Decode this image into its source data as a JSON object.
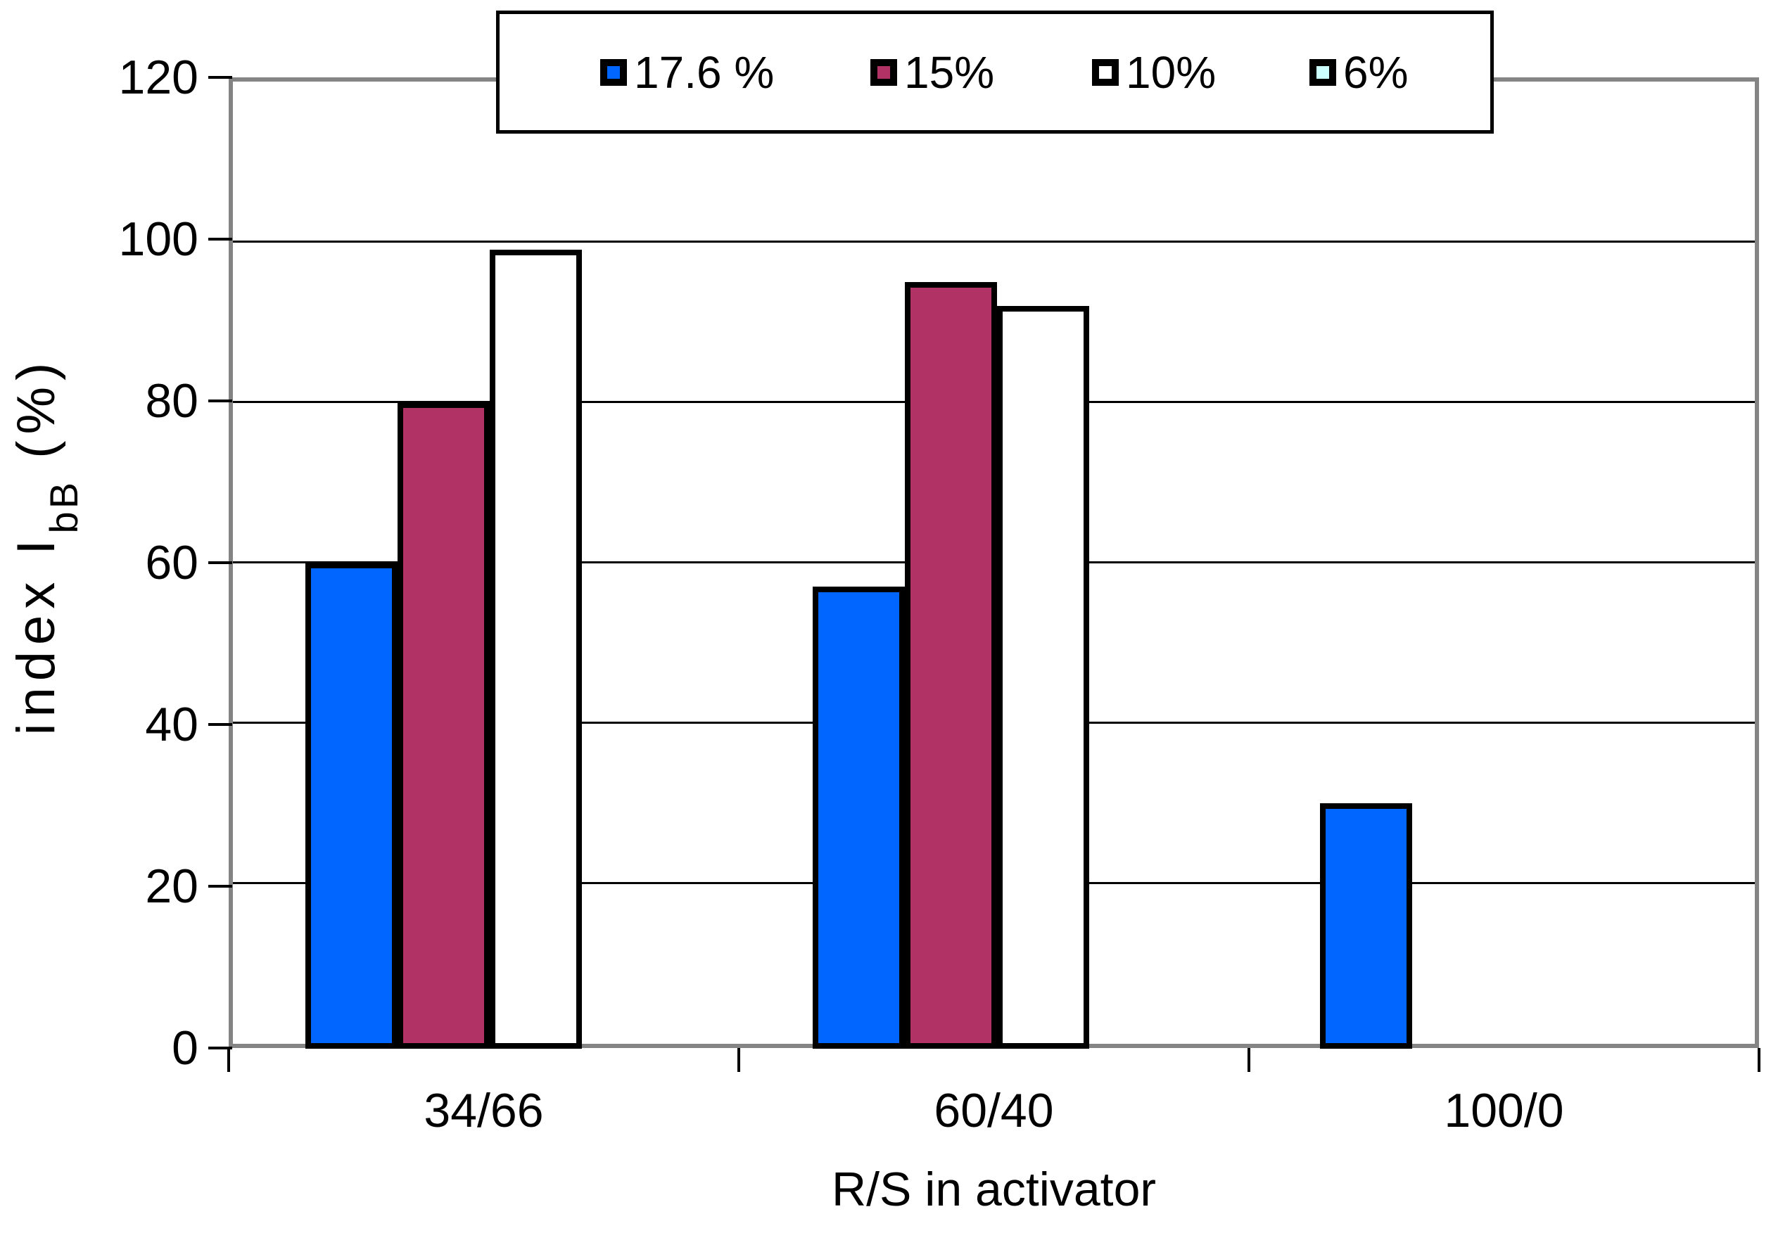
{
  "page": {
    "background": "#FFFFFF"
  },
  "chart_data": {
    "type": "bar",
    "title": "",
    "categories": [
      "34/66",
      "60/40",
      "100/0"
    ],
    "series": [
      {
        "name": "17.6 %",
        "color": "#0066FF",
        "values": [
          60,
          57,
          30
        ]
      },
      {
        "name": "15%",
        "color": "#B13366",
        "values": [
          80,
          95,
          0
        ]
      },
      {
        "name": "10%",
        "color": "#FFFFFF",
        "values": [
          99,
          92,
          0
        ]
      },
      {
        "name": "6%",
        "color": "#CCFFFF",
        "values": [
          0,
          0,
          0
        ]
      }
    ],
    "xlabel": "R/S in activator",
    "ylabel": "index IbB (%)",
    "ylabel_parts": {
      "pre": "index I",
      "sub": "bB",
      "post": " (%)"
    },
    "ylim": [
      0,
      120
    ],
    "yticks": [
      0,
      20,
      40,
      60,
      80,
      100,
      120
    ],
    "grid": true,
    "legend_position": "top-center",
    "styles": {
      "axis_color": "#848484",
      "gridline_color": "#000000",
      "bar_border_color": "#000000",
      "legend_border_color": "#000000",
      "legend_background": "#FFFFFF",
      "text_color": "#000000"
    }
  }
}
